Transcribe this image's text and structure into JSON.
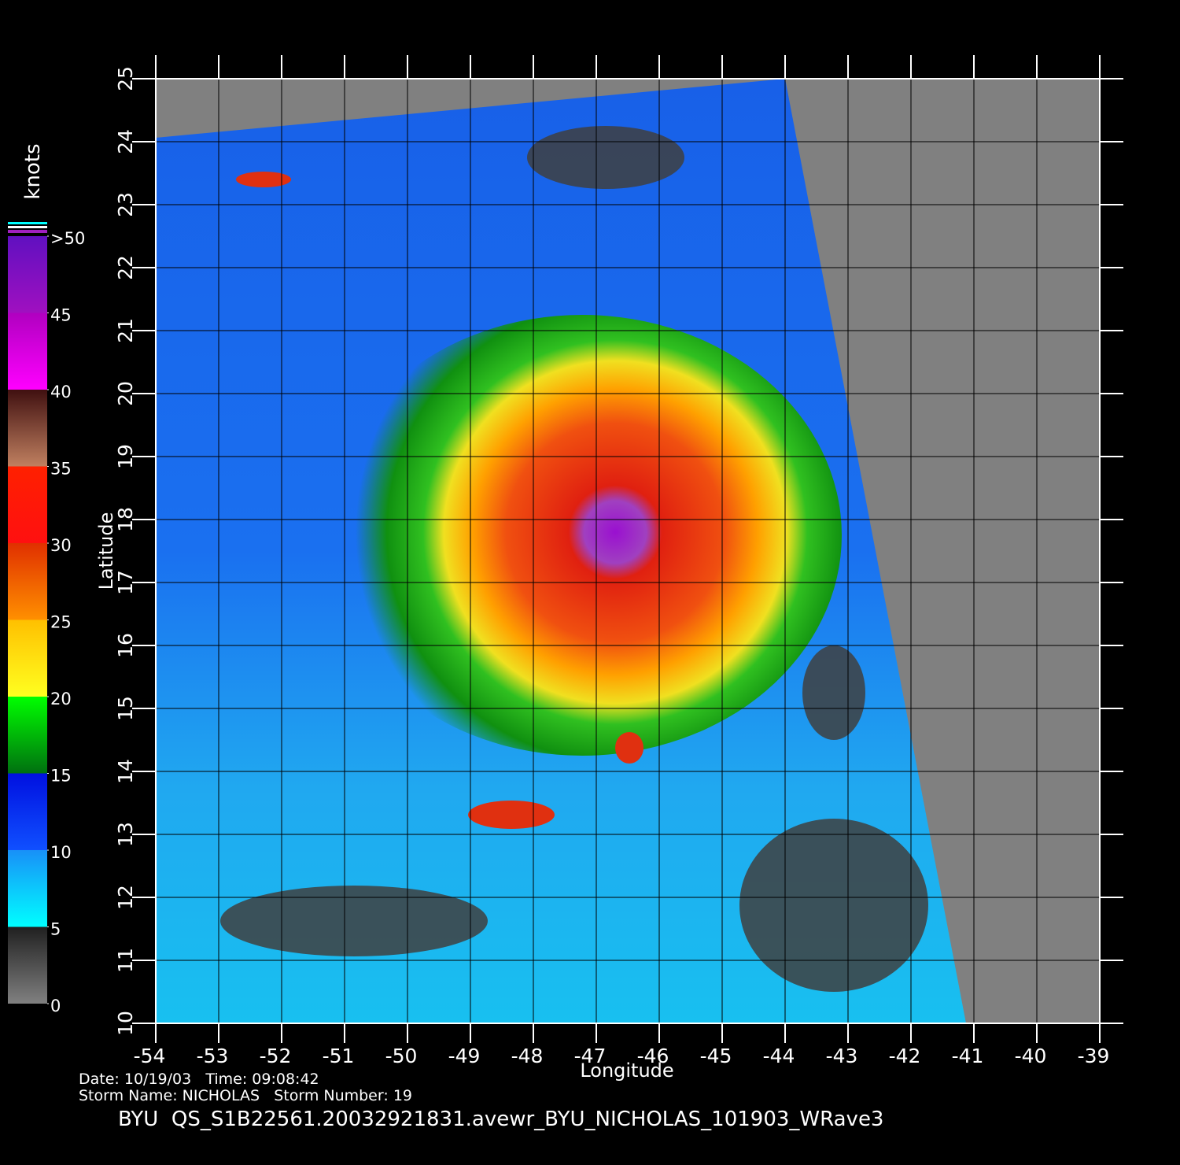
{
  "map": {
    "xlim": [
      -54,
      -39
    ],
    "ylim": [
      10,
      25
    ],
    "x_axis": {
      "label": "Longitude",
      "ticks": [
        -54,
        -53,
        -52,
        -51,
        -50,
        -49,
        -48,
        -47,
        -46,
        -45,
        -44,
        -43,
        -42,
        -41,
        -40,
        -39
      ]
    },
    "y_axis": {
      "label": "Latitude",
      "ticks": [
        10,
        11,
        12,
        13,
        14,
        15,
        16,
        17,
        18,
        19,
        20,
        21,
        22,
        23,
        24,
        25
      ]
    }
  },
  "colorbar": {
    "unit": "knots",
    "lim": [
      0,
      50
    ],
    "ticks": [
      0,
      5,
      10,
      15,
      20,
      25,
      30,
      35,
      40,
      45,
      {
        "value": 50,
        "label": ">50"
      }
    ]
  },
  "info": {
    "date_label": "Date:",
    "date": "10/19/03",
    "time_label": "Time:",
    "time": "09:08:42",
    "storm_name_label": "Storm Name:",
    "storm_name": "NICHOLAS",
    "storm_number_label": "Storm Number:",
    "storm_number": "19"
  },
  "title": "BYU  QS_S1B22561.20032921831.avewr_BYU_NICHOLAS_101903_WRave3"
}
